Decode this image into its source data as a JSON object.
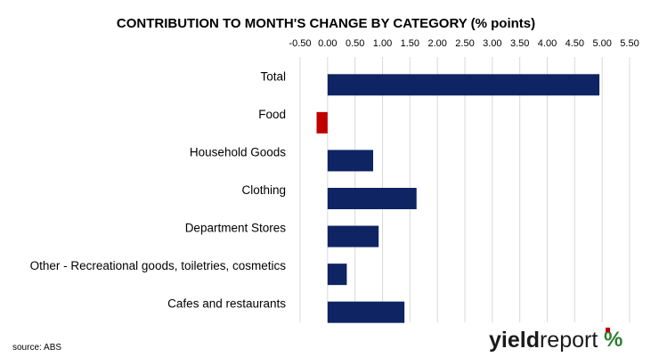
{
  "chart_data": {
    "type": "bar",
    "orientation": "horizontal",
    "title": "CONTRIBUTION TO MONTH'S CHANGE BY CATEGORY (% points)",
    "categories": [
      "Total",
      "Food",
      "Household Goods",
      "Clothing",
      "Department Stores",
      "Other - Recreational goods, toiletries, cosmetics",
      "Cafes and restaurants"
    ],
    "values": [
      4.95,
      -0.2,
      0.83,
      1.62,
      0.93,
      0.35,
      1.4
    ],
    "xlim": [
      -0.5,
      5.5
    ],
    "x_ticks": [
      "-0.50",
      "0.00",
      "0.50",
      "1.00",
      "1.50",
      "2.00",
      "2.50",
      "3.00",
      "3.50",
      "4.00",
      "4.50",
      "5.00",
      "5.50"
    ],
    "x_axis_position": "top",
    "grid": true,
    "positive_color": "#0f2463",
    "negative_color": "#c00000"
  },
  "footer": {
    "source": "source: ABS"
  },
  "logo": {
    "part1": "yield",
    "part2": "report",
    "symbol": "%",
    "colors": {
      "red": "#c00000",
      "green": "#2e7d32"
    }
  }
}
